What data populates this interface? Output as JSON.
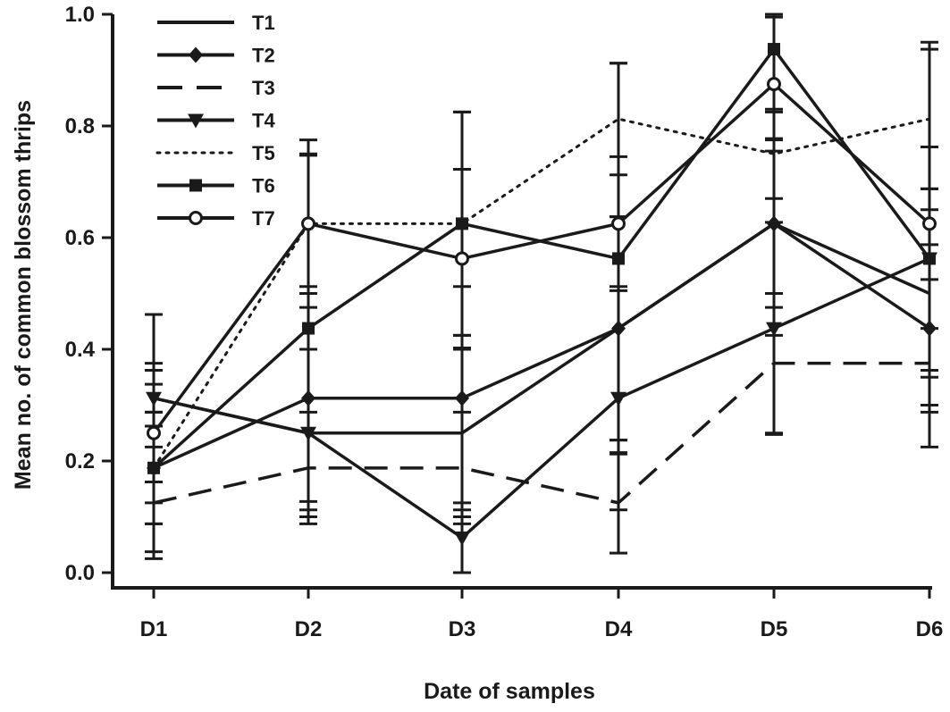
{
  "chart_data": {
    "type": "line",
    "xlabel": "Date of samples",
    "ylabel": "Mean no. of common blossom thrips",
    "ylim": [
      0,
      1
    ],
    "yticks": [
      "0.0",
      "0.2",
      "0.4",
      "0.6",
      "0.8",
      "1.0"
    ],
    "categories": [
      "D1",
      "D2",
      "D3",
      "D4",
      "D5",
      "D6"
    ],
    "legend_position": "top-left",
    "grid": false,
    "series": [
      {
        "name": "T1",
        "style": "solid",
        "marker": "none",
        "values": [
          0.3125,
          0.25,
          0.25,
          0.4375,
          0.625,
          0.5
        ],
        "error": [
          0.05,
          0.15,
          0.15,
          0.2,
          0.15,
          0.15
        ]
      },
      {
        "name": "T2",
        "style": "solid",
        "marker": "diamond",
        "values": [
          0.1875,
          0.3125,
          0.3125,
          0.4375,
          0.625,
          0.4375
        ],
        "error": [
          0.1,
          0.2,
          0.2,
          0.2,
          0.2,
          0.15
        ]
      },
      {
        "name": "T3",
        "style": "dashed",
        "marker": "none",
        "values": [
          0.125,
          0.1875,
          0.1875,
          0.125,
          0.375,
          0.375
        ],
        "error": [
          0.1,
          0.1,
          0.1,
          0.09,
          0.125,
          0.15
        ]
      },
      {
        "name": "T4",
        "style": "solid",
        "marker": "triangle-down",
        "values": [
          0.3125,
          0.25,
          0.0625,
          0.3125,
          0.4375,
          0.5625
        ],
        "error": [
          0.15,
          0.15,
          0.0625,
          0.2,
          0.19,
          0.2
        ]
      },
      {
        "name": "T5",
        "style": "dotted",
        "marker": "none",
        "values": [
          0.1875,
          0.625,
          0.625,
          0.8125,
          0.75,
          0.8125
        ],
        "error": [
          0.1,
          0.15,
          0.2,
          0.1,
          0.08,
          0.125
        ]
      },
      {
        "name": "T6",
        "style": "solid",
        "marker": "square",
        "values": [
          0.1875,
          0.4375,
          0.625,
          0.5625,
          0.9375,
          0.5625
        ],
        "error": [
          0.15,
          0.31,
          0.2,
          0.35,
          0.16,
          0.125
        ]
      },
      {
        "name": "T7",
        "style": "solid",
        "marker": "circle-open",
        "values": [
          0.25,
          0.625,
          0.5625,
          0.625,
          0.875,
          0.625
        ],
        "error": [
          0.125,
          0.125,
          0.16,
          0.12,
          0.12,
          0.325
        ]
      }
    ]
  }
}
